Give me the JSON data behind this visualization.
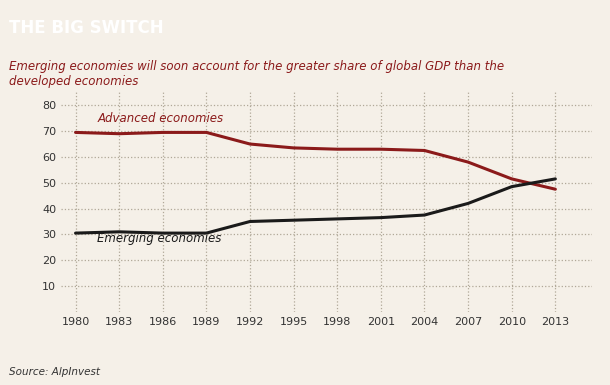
{
  "title": "THE BIG SWITCH",
  "subtitle": "Emerging economies will soon account for the greater share of global GDP than the\ndeveloped economies",
  "source": "Source: AlpInvest",
  "background_color": "#f5f0e8",
  "title_bg_color": "#8b1a1a",
  "title_text_color": "#ffffff",
  "subtitle_color": "#8b1a1a",
  "source_color": "#333333",
  "years": [
    1980,
    1983,
    1986,
    1989,
    1992,
    1995,
    1998,
    2001,
    2004,
    2007,
    2010,
    2013
  ],
  "advanced": [
    69.5,
    69.0,
    69.5,
    69.5,
    65.0,
    63.5,
    63.0,
    63.0,
    62.5,
    58.0,
    51.5,
    47.5
  ],
  "emerging": [
    30.5,
    31.0,
    30.5,
    30.5,
    35.0,
    35.5,
    36.0,
    36.5,
    37.5,
    42.0,
    48.5,
    51.5
  ],
  "advanced_color": "#8b1a1a",
  "emerging_color": "#1a1a1a",
  "advanced_label": "Advanced economies",
  "emerging_label": "Emerging economies",
  "ylim": [
    0,
    85
  ],
  "yticks": [
    10,
    20,
    30,
    40,
    50,
    60,
    70,
    80
  ],
  "grid_color": "#b0a898",
  "line_width": 2.2,
  "xlim": [
    1979,
    2015.5
  ]
}
